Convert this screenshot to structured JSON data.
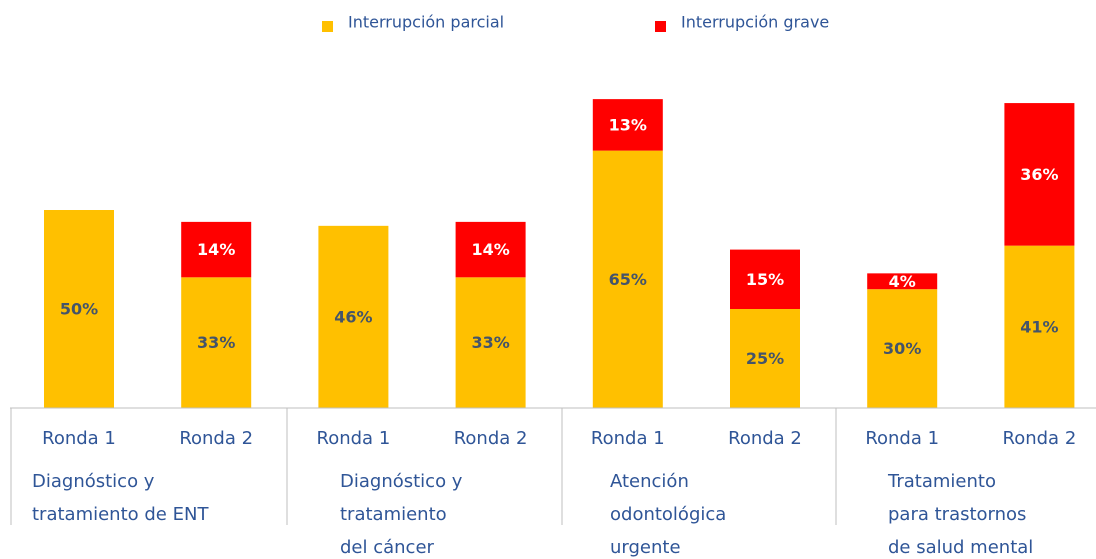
{
  "chart_data": {
    "type": "stacked_bar",
    "categories": [
      "Ronda 1",
      "Ronda 2",
      "Ronda 1",
      "Ronda 2",
      "Ronda 1",
      "Ronda 2",
      "Ronda 1",
      "Ronda 2"
    ],
    "groups": [
      [
        "Diagnóstico y",
        "tratamiento de ENT"
      ],
      [
        "Diagnóstico y",
        "tratamiento",
        "del cáncer"
      ],
      [
        "Atención",
        "odontológica",
        "urgente"
      ],
      [
        "Tratamiento",
        "para trastornos",
        "de salud mental"
      ]
    ],
    "series": [
      {
        "name": "Interrupción parcial",
        "color": "#ffc000",
        "label_color": "#44546a",
        "values": [
          50,
          33,
          46,
          33,
          65,
          25,
          30,
          41
        ],
        "value_labels": [
          "50%",
          "33%",
          "46%",
          "33%",
          "65%",
          "25%",
          "30%",
          "41%"
        ]
      },
      {
        "name": "Interrupción grave",
        "color": "#ff0000",
        "label_color": "#ffffff",
        "values": [
          null,
          14,
          null,
          14,
          13,
          15,
          4,
          36
        ],
        "value_labels": [
          null,
          "14%",
          null,
          "14%",
          "13%",
          "15%",
          "4%",
          "36%"
        ]
      }
    ],
    "legend": "top"
  }
}
